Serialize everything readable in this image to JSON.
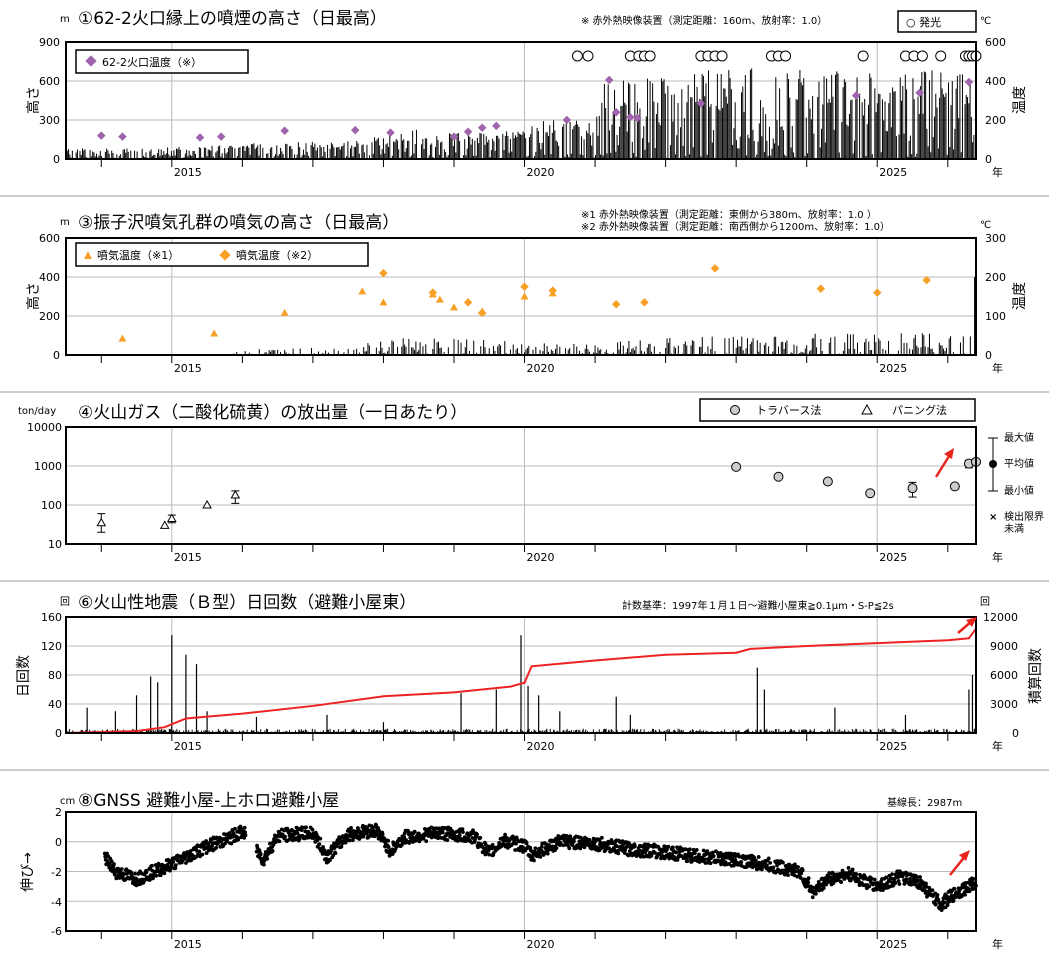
{
  "x_axis": {
    "labels": [
      "2015",
      "2020",
      "2025"
    ],
    "year_suffix": "年",
    "start_year": 2013.5,
    "end_year": 2026.4
  },
  "chart_data": [
    {
      "id": "plume",
      "type": "bar",
      "title": "①62-2火口縁上の噴煙の高さ（日最高）",
      "note": "※ 赤外熱映像装置（測定距離：160m、放射率：1.0）",
      "left_unit": "m",
      "right_unit": "℃",
      "ylabel": "高さ",
      "y2label": "温度",
      "ylim": [
        0,
        900
      ],
      "y_ticks": [
        "0",
        "300",
        "600",
        "900"
      ],
      "y2lim": [
        0,
        600
      ],
      "y2_ticks": [
        "0",
        "200",
        "400",
        "600"
      ],
      "legend": {
        "label": "62-2火口温度（※）",
        "placement": "top-left"
      },
      "glow_legend": "○ 発光",
      "bar_envelope": [
        {
          "x": 2013.5,
          "v": 80
        },
        {
          "x": 2015.0,
          "v": 90
        },
        {
          "x": 2016.0,
          "v": 120
        },
        {
          "x": 2017.5,
          "v": 140
        },
        {
          "x": 2018.5,
          "v": 230
        },
        {
          "x": 2019.5,
          "v": 200
        },
        {
          "x": 2020.0,
          "v": 240
        },
        {
          "x": 2020.5,
          "v": 350
        },
        {
          "x": 2021.0,
          "v": 270
        },
        {
          "x": 2021.1,
          "v": 600
        },
        {
          "x": 2022.0,
          "v": 700
        },
        {
          "x": 2023.0,
          "v": 700
        },
        {
          "x": 2024.0,
          "v": 700
        },
        {
          "x": 2025.0,
          "v": 680
        },
        {
          "x": 2026.4,
          "v": 700
        }
      ],
      "scatter": [
        {
          "x": 2014.0,
          "y": 120
        },
        {
          "x": 2014.3,
          "y": 115
        },
        {
          "x": 2015.4,
          "y": 110
        },
        {
          "x": 2015.7,
          "y": 115
        },
        {
          "x": 2016.6,
          "y": 145
        },
        {
          "x": 2017.6,
          "y": 148
        },
        {
          "x": 2018.1,
          "y": 135
        },
        {
          "x": 2019.0,
          "y": 115
        },
        {
          "x": 2019.2,
          "y": 140
        },
        {
          "x": 2019.4,
          "y": 160
        },
        {
          "x": 2019.6,
          "y": 170
        },
        {
          "x": 2020.6,
          "y": 200
        },
        {
          "x": 2021.2,
          "y": 405
        },
        {
          "x": 2021.3,
          "y": 240
        },
        {
          "x": 2021.5,
          "y": 215
        },
        {
          "x": 2021.6,
          "y": 210
        },
        {
          "x": 2022.5,
          "y": 285
        },
        {
          "x": 2024.7,
          "y": 325
        },
        {
          "x": 2025.6,
          "y": 340
        },
        {
          "x": 2026.3,
          "y": 395
        }
      ],
      "glow": [
        2020.75,
        2020.9,
        2021.5,
        2021.62,
        2021.7,
        2021.78,
        2022.5,
        2022.6,
        2022.7,
        2022.8,
        2023.5,
        2023.6,
        2023.7,
        2024.8,
        2025.4,
        2025.52,
        2025.64,
        2025.9,
        2026.25,
        2026.3,
        2026.35,
        2026.4
      ]
    },
    {
      "id": "fumarole",
      "type": "bar",
      "title": "③振子沢噴気孔群の噴気の高さ（日最高）",
      "note": "※1 赤外熱映像装置（測定距離：東側から380m、放射率：1.0 ）",
      "note2": "※2 赤外熱映像装置（測定距離：南西側から1200m、放射率：1.0）",
      "left_unit": "m",
      "right_unit": "℃",
      "ylabel": "高さ",
      "y2label": "温度",
      "ylim": [
        0,
        600
      ],
      "y_ticks": [
        "0",
        "200",
        "400",
        "600"
      ],
      "y2lim": [
        0,
        300
      ],
      "y2_ticks": [
        "0",
        "100",
        "200",
        "300"
      ],
      "legend": {
        "labels": [
          "噴気温度（※1）",
          "噴気温度（※2）"
        ],
        "placement": "top-left"
      },
      "bar_envelope": [
        {
          "x": 2013.5,
          "v": 0
        },
        {
          "x": 2015.8,
          "v": 0
        },
        {
          "x": 2016.0,
          "v": 30
        },
        {
          "x": 2017.5,
          "v": 40
        },
        {
          "x": 2018.0,
          "v": 90
        },
        {
          "x": 2019.5,
          "v": 80
        },
        {
          "x": 2020.0,
          "v": 60
        },
        {
          "x": 2021.0,
          "v": 60
        },
        {
          "x": 2022.0,
          "v": 90
        },
        {
          "x": 2023.0,
          "v": 100
        },
        {
          "x": 2024.0,
          "v": 110
        },
        {
          "x": 2025.0,
          "v": 110
        },
        {
          "x": 2026.4,
          "v": 150
        }
      ],
      "scatter_s1": [
        {
          "x": 2014.3,
          "y": 42
        },
        {
          "x": 2015.6,
          "y": 55
        },
        {
          "x": 2016.6,
          "y": 108
        },
        {
          "x": 2017.7,
          "y": 163
        },
        {
          "x": 2018.0,
          "y": 135
        },
        {
          "x": 2018.7,
          "y": 155
        },
        {
          "x": 2018.8,
          "y": 142
        },
        {
          "x": 2019.0,
          "y": 122
        },
        {
          "x": 2019.4,
          "y": 112
        },
        {
          "x": 2020.0,
          "y": 150
        },
        {
          "x": 2020.4,
          "y": 158
        }
      ],
      "scatter_s2": [
        {
          "x": 2018.0,
          "y": 210
        },
        {
          "x": 2018.7,
          "y": 160
        },
        {
          "x": 2019.2,
          "y": 135
        },
        {
          "x": 2019.4,
          "y": 108
        },
        {
          "x": 2020.0,
          "y": 175
        },
        {
          "x": 2020.4,
          "y": 165
        },
        {
          "x": 2021.3,
          "y": 130
        },
        {
          "x": 2021.7,
          "y": 135
        },
        {
          "x": 2022.7,
          "y": 222
        },
        {
          "x": 2024.2,
          "y": 170
        },
        {
          "x": 2025.0,
          "y": 160
        },
        {
          "x": 2025.7,
          "y": 192
        }
      ]
    },
    {
      "id": "so2",
      "type": "scatter",
      "title": "④火山ガス（二酸化硫黄）の放出量（一日あたり）",
      "left_unit": "ton/day",
      "y_scale": "log",
      "ylim": [
        10,
        10000
      ],
      "y_ticks": [
        "10",
        "100",
        "1000",
        "10000"
      ],
      "legend": {
        "labels": [
          "トラバース法",
          "パニング法"
        ],
        "placement": "top-right"
      },
      "side_legend": [
        "最大値",
        "平均値",
        "最小値",
        "検出限界",
        "未満"
      ],
      "traverse": [
        {
          "x": 2023.0,
          "y": 950
        },
        {
          "x": 2023.6,
          "y": 530
        },
        {
          "x": 2024.3,
          "y": 400
        },
        {
          "x": 2024.9,
          "y": 200
        },
        {
          "x": 2025.5,
          "y": 270,
          "lo": 160,
          "hi": 380
        },
        {
          "x": 2026.1,
          "y": 300
        },
        {
          "x": 2026.3,
          "y": 1150,
          "lo": 900,
          "hi": 1400
        },
        {
          "x": 2026.4,
          "y": 1280
        }
      ],
      "panning": [
        {
          "x": 2014.0,
          "y": 35,
          "lo": 20,
          "hi": 60
        },
        {
          "x": 2014.9,
          "y": 30
        },
        {
          "x": 2015.0,
          "y": 45,
          "lo": 35,
          "hi": 55
        },
        {
          "x": 2015.5,
          "y": 100
        },
        {
          "x": 2015.9,
          "y": 180,
          "lo": 110,
          "hi": 230
        }
      ]
    },
    {
      "id": "quakes",
      "type": "bar",
      "title": "⑥火山性地震（Ｂ型）日回数（避難小屋東）",
      "note": "計数基準：1997年１月１日～避難小屋東≧0.1μm・S-P≦2s",
      "left_unit": "回",
      "right_unit": "回",
      "ylabel": "日回数",
      "y2label": "積算回数",
      "ylim": [
        0,
        160
      ],
      "y_ticks": [
        "0",
        "40",
        "80",
        "120",
        "160"
      ],
      "y2lim": [
        0,
        12000
      ],
      "y2_ticks": [
        "0",
        "3000",
        "6000",
        "9000",
        "12000"
      ],
      "spikes": [
        {
          "x": 2013.8,
          "v": 35
        },
        {
          "x": 2014.2,
          "v": 30
        },
        {
          "x": 2014.5,
          "v": 52
        },
        {
          "x": 2014.7,
          "v": 78
        },
        {
          "x": 2014.8,
          "v": 70
        },
        {
          "x": 2015.0,
          "v": 135
        },
        {
          "x": 2015.2,
          "v": 108
        },
        {
          "x": 2015.35,
          "v": 95
        },
        {
          "x": 2015.5,
          "v": 30
        },
        {
          "x": 2016.2,
          "v": 22
        },
        {
          "x": 2017.2,
          "v": 25
        },
        {
          "x": 2018.0,
          "v": 15
        },
        {
          "x": 2019.1,
          "v": 55
        },
        {
          "x": 2019.6,
          "v": 60
        },
        {
          "x": 2019.95,
          "v": 135
        },
        {
          "x": 2020.05,
          "v": 65
        },
        {
          "x": 2020.2,
          "v": 52
        },
        {
          "x": 2020.5,
          "v": 30
        },
        {
          "x": 2021.3,
          "v": 50
        },
        {
          "x": 2021.5,
          "v": 25
        },
        {
          "x": 2023.3,
          "v": 90
        },
        {
          "x": 2023.4,
          "v": 60
        },
        {
          "x": 2024.4,
          "v": 35
        },
        {
          "x": 2025.4,
          "v": 25
        },
        {
          "x": 2026.3,
          "v": 60
        },
        {
          "x": 2026.35,
          "v": 80
        }
      ],
      "cumulative": [
        {
          "x": 2013.5,
          "y": 0
        },
        {
          "x": 2014.5,
          "y": 200
        },
        {
          "x": 2014.9,
          "y": 600
        },
        {
          "x": 2015.2,
          "y": 1500
        },
        {
          "x": 2016.0,
          "y": 2000
        },
        {
          "x": 2017.0,
          "y": 2800
        },
        {
          "x": 2018.0,
          "y": 3800
        },
        {
          "x": 2019.0,
          "y": 4200
        },
        {
          "x": 2019.8,
          "y": 4800
        },
        {
          "x": 2020.0,
          "y": 5200
        },
        {
          "x": 2020.1,
          "y": 6900
        },
        {
          "x": 2021.0,
          "y": 7500
        },
        {
          "x": 2022.0,
          "y": 8100
        },
        {
          "x": 2023.0,
          "y": 8300
        },
        {
          "x": 2023.2,
          "y": 8700
        },
        {
          "x": 2024.0,
          "y": 9000
        },
        {
          "x": 2025.0,
          "y": 9300
        },
        {
          "x": 2026.0,
          "y": 9600
        },
        {
          "x": 2026.3,
          "y": 9800
        },
        {
          "x": 2026.4,
          "y": 10800
        }
      ],
      "cumulative_color": "#ee2222"
    },
    {
      "id": "gnss",
      "type": "scatter",
      "title": "⑧GNSS 避難小屋-上ホロ避難小屋",
      "note": "基線長：2987m",
      "left_unit": "cm",
      "ylabel": "伸び→",
      "ylim": [
        -6,
        2
      ],
      "y_ticks": [
        "-6",
        "-4",
        "-2",
        "0",
        "2"
      ],
      "trend": [
        {
          "x": 2014.05,
          "y": -1.0
        },
        {
          "x": 2014.2,
          "y": -2.0
        },
        {
          "x": 2014.5,
          "y": -2.5
        },
        {
          "x": 2015.0,
          "y": -1.5
        },
        {
          "x": 2015.5,
          "y": -0.3
        },
        {
          "x": 2015.8,
          "y": 0.2
        },
        {
          "x": 2016.0,
          "y": 0.7
        },
        {
          "x": 2016.3,
          "y": -1.2
        },
        {
          "x": 2016.5,
          "y": 0.4
        },
        {
          "x": 2017.0,
          "y": 0.6
        },
        {
          "x": 2017.2,
          "y": -1.0
        },
        {
          "x": 2017.5,
          "y": 0.5
        },
        {
          "x": 2017.9,
          "y": 0.8
        },
        {
          "x": 2018.1,
          "y": -0.6
        },
        {
          "x": 2018.3,
          "y": 0.3
        },
        {
          "x": 2018.8,
          "y": 0.6
        },
        {
          "x": 2019.3,
          "y": 0.3
        },
        {
          "x": 2019.5,
          "y": -0.8
        },
        {
          "x": 2019.7,
          "y": 0.1
        },
        {
          "x": 2020.0,
          "y": -0.3
        },
        {
          "x": 2020.1,
          "y": -0.9
        },
        {
          "x": 2020.5,
          "y": 0.0
        },
        {
          "x": 2021.0,
          "y": -0.1
        },
        {
          "x": 2021.5,
          "y": -0.5
        },
        {
          "x": 2022.0,
          "y": -0.7
        },
        {
          "x": 2022.5,
          "y": -1.0
        },
        {
          "x": 2023.0,
          "y": -1.2
        },
        {
          "x": 2023.5,
          "y": -1.6
        },
        {
          "x": 2023.9,
          "y": -2.0
        },
        {
          "x": 2024.1,
          "y": -3.4
        },
        {
          "x": 2024.3,
          "y": -2.5
        },
        {
          "x": 2024.6,
          "y": -2.2
        },
        {
          "x": 2025.0,
          "y": -3.0
        },
        {
          "x": 2025.3,
          "y": -2.4
        },
        {
          "x": 2025.6,
          "y": -2.7
        },
        {
          "x": 2025.8,
          "y": -3.8
        },
        {
          "x": 2025.9,
          "y": -4.2
        },
        {
          "x": 2026.1,
          "y": -3.5
        },
        {
          "x": 2026.3,
          "y": -3.0
        },
        {
          "x": 2026.4,
          "y": -2.7
        }
      ]
    }
  ],
  "annotation_color": "#e8241c",
  "colors": {
    "diamond_purple": "#a064ac",
    "orange": "#f7a028",
    "grid": "#bbbbbb",
    "marker_gray": "#cccccc"
  }
}
